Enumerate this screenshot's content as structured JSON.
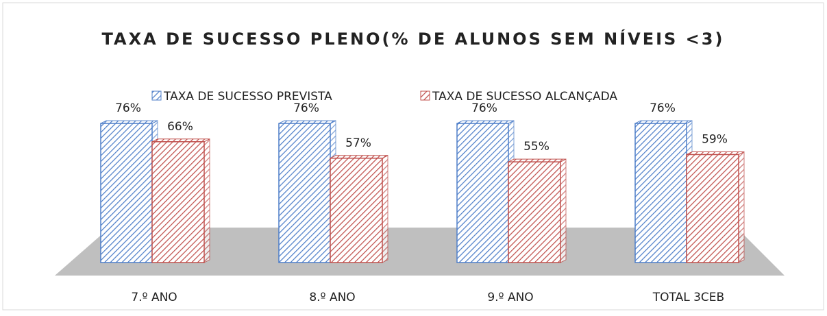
{
  "chart_data": {
    "type": "bar3d",
    "title": "TAXA DE SUCESSO PLENO(% DE ALUNOS SEM NÍVEIS <3)",
    "categories": [
      "7.º ANO",
      "8.º ANO",
      "9.º ANO",
      "TOTAL 3CEB"
    ],
    "series": [
      {
        "name": "TAXA DE SUCESSO PREVISTA",
        "color": "#4f7fc9",
        "values": [
          76,
          76,
          76,
          76
        ],
        "value_labels": [
          "76%",
          "76%",
          "76%",
          "76%"
        ]
      },
      {
        "name": "TAXA DE SUCESSO ALCANÇADA",
        "color": "#c0504d",
        "values": [
          66,
          57,
          55,
          59
        ],
        "value_labels": [
          "66%",
          "57%",
          "55%",
          "59%"
        ]
      }
    ]
  }
}
